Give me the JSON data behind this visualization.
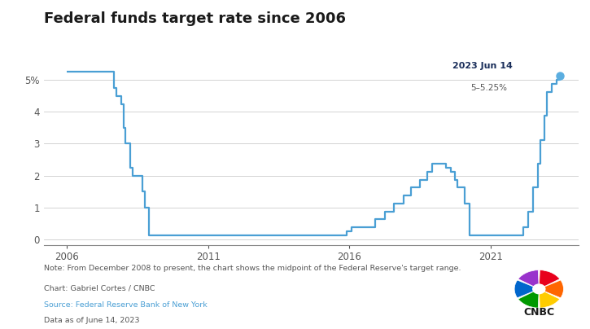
{
  "title": "Federal funds target rate since 2006",
  "title_fontsize": 13,
  "title_fontweight": "bold",
  "line_color": "#4a9fd4",
  "dot_color": "#5baee0",
  "annotation_date": "2023 Jun 14",
  "annotation_rate": "5–5.25%",
  "annotation_date_color": "#1a2e5a",
  "annotation_rate_color": "#555555",
  "note_text": "Note: From December 2008 to present, the chart shows the midpoint of the Federal Reserve's target range.",
  "chart_credit": "Chart: Gabriel Cortes / CNBC",
  "source_text": "Source: Federal Reserve Bank of New York",
  "source_color": "#4a9fd4",
  "data_text": "Data as of June 14, 2023",
  "footer_text_color": "#555555",
  "background_color": "#ffffff",
  "grid_color": "#cccccc",
  "xtick_labels": [
    "2006",
    "2011",
    "2016",
    "2021"
  ],
  "xtick_positions": [
    2006,
    2011,
    2016,
    2021
  ],
  "ytick_positions": [
    0,
    1,
    2,
    3,
    4,
    5
  ],
  "ylim": [
    -0.18,
    5.65
  ],
  "xlim": [
    2005.2,
    2024.1
  ],
  "rate_data": [
    [
      2006.0,
      5.25
    ],
    [
      2007.583,
      5.25
    ],
    [
      2007.667,
      4.75
    ],
    [
      2007.75,
      4.5
    ],
    [
      2007.917,
      4.25
    ],
    [
      2008.0,
      3.5
    ],
    [
      2008.083,
      3.0
    ],
    [
      2008.25,
      2.25
    ],
    [
      2008.333,
      2.0
    ],
    [
      2008.667,
      1.5
    ],
    [
      2008.75,
      1.0
    ],
    [
      2008.917,
      0.125
    ],
    [
      2015.833,
      0.125
    ],
    [
      2015.917,
      0.25
    ],
    [
      2016.083,
      0.375
    ],
    [
      2016.917,
      0.625
    ],
    [
      2017.25,
      0.875
    ],
    [
      2017.583,
      1.125
    ],
    [
      2017.917,
      1.375
    ],
    [
      2018.167,
      1.625
    ],
    [
      2018.5,
      1.875
    ],
    [
      2018.75,
      2.125
    ],
    [
      2018.917,
      2.375
    ],
    [
      2019.417,
      2.25
    ],
    [
      2019.583,
      2.125
    ],
    [
      2019.75,
      1.875
    ],
    [
      2019.833,
      1.625
    ],
    [
      2020.083,
      1.125
    ],
    [
      2020.25,
      0.125
    ],
    [
      2022.167,
      0.375
    ],
    [
      2022.333,
      0.875
    ],
    [
      2022.5,
      1.625
    ],
    [
      2022.667,
      2.375
    ],
    [
      2022.75,
      3.125
    ],
    [
      2022.917,
      3.875
    ],
    [
      2023.0,
      4.625
    ],
    [
      2023.167,
      4.875
    ],
    [
      2023.333,
      5.0
    ],
    [
      2023.45,
      5.125
    ]
  ]
}
